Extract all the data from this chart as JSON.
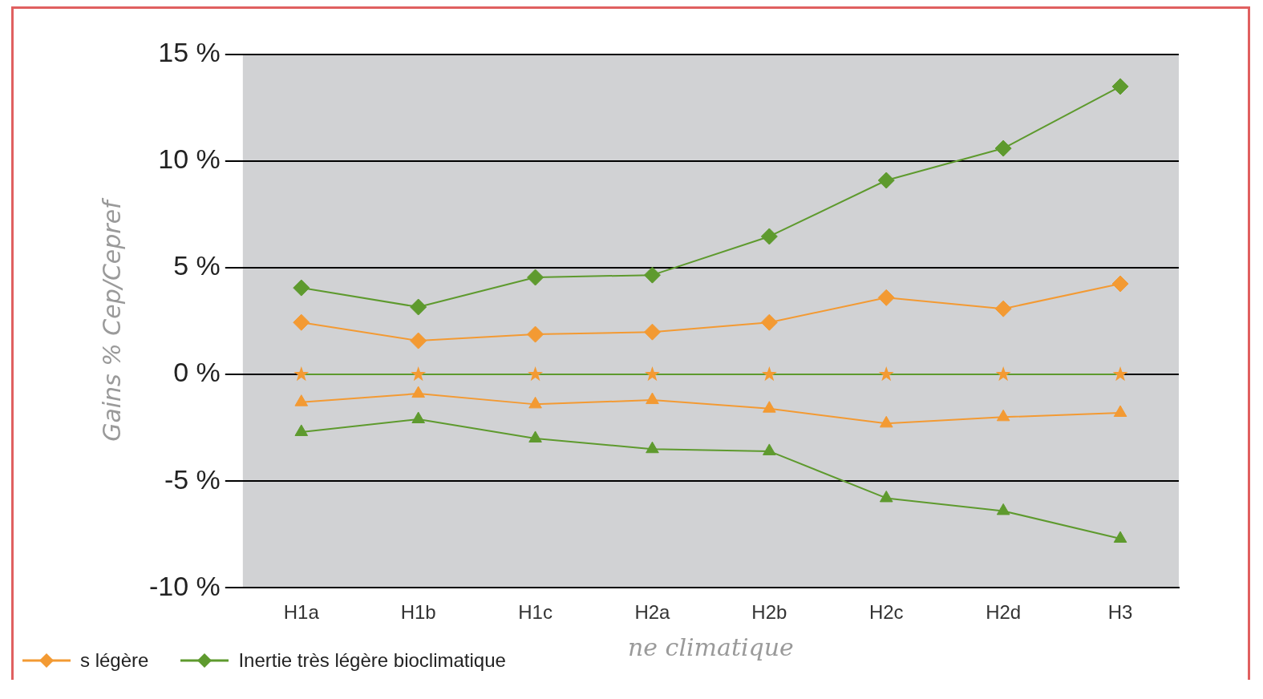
{
  "chart_data": {
    "type": "line",
    "ylabel": "Gains % Cep/Cepref",
    "xlabel": "ne climatique",
    "categories": [
      "H1a",
      "H1b",
      "H1c",
      "H2a",
      "H2b",
      "H2c",
      "H2d",
      "H3"
    ],
    "series": [
      {
        "color": "#5e9a2e",
        "marker": "none",
        "values": [
          0,
          0,
          0,
          0,
          0,
          0,
          0,
          0
        ]
      },
      {
        "type": "scatter",
        "color": "#f39a33",
        "marker": "star",
        "values": [
          0,
          0,
          0,
          0,
          0,
          0,
          0,
          0
        ]
      },
      {
        "name": "s légère",
        "color": "#f39a33",
        "marker": "diamond",
        "values": [
          2.44,
          1.58,
          1.88,
          1.99,
          2.44,
          3.6,
          3.08,
          4.25
        ]
      },
      {
        "color": "#f39a33",
        "marker": "triangle",
        "values": [
          -1.3,
          -0.9,
          -1.4,
          -1.2,
          -1.6,
          -2.3,
          -2.0,
          -1.8
        ]
      },
      {
        "name": "Inertie très légère bioclimatique",
        "color": "#5e9a2e",
        "marker": "diamond",
        "values": [
          4.06,
          3.16,
          4.55,
          4.66,
          6.47,
          9.1,
          10.6,
          13.5
        ]
      },
      {
        "color": "#5e9a2e",
        "marker": "triangle",
        "values": [
          -2.7,
          -2.1,
          -3.0,
          -3.5,
          -3.6,
          -5.8,
          -6.4,
          -7.7
        ]
      }
    ],
    "ylim": [
      -10,
      15
    ],
    "yticks": [
      {
        "value": -10,
        "label": "-10 %"
      },
      {
        "value": -5,
        "label": "-5 %"
      },
      {
        "value": 0,
        "label": "0 %"
      },
      {
        "value": 5,
        "label": "5 %"
      },
      {
        "value": 10,
        "label": "10 %"
      },
      {
        "value": 15,
        "label": "15 %"
      }
    ],
    "grid": "y",
    "legend": "bottom left"
  }
}
